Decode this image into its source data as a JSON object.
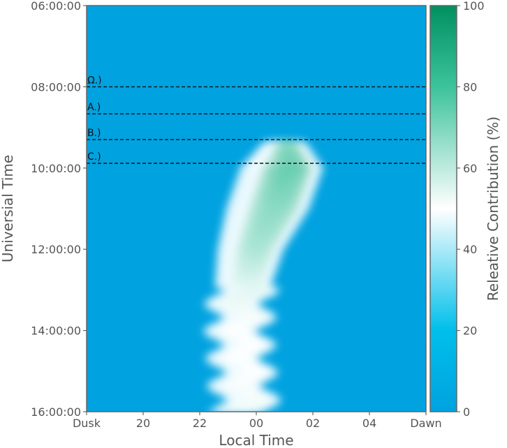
{
  "chart_data": {
    "type": "heatmap",
    "xlabel": "Local Time",
    "ylabel": "Universial Time",
    "colorbar_label": "Releative Contribution (%)",
    "x_ticks": [
      "Dusk",
      "20",
      "22",
      "00",
      "02",
      "04",
      "Dawn"
    ],
    "y_ticks": [
      "06:00:00",
      "08:00:00",
      "10:00:00",
      "12:00:00",
      "14:00:00",
      "16:00:00"
    ],
    "colorbar_ticks": [
      "0",
      "20",
      "40",
      "60",
      "80",
      "100"
    ],
    "clim": [
      0,
      100
    ],
    "colormap": [
      "#00A2E0",
      "#00BFEA",
      "#FFFFFF",
      "#3CC39B",
      "#009060"
    ],
    "background_color": "#00A2E0",
    "reference_lines": [
      {
        "label": "Ω.)",
        "ut": "08:00:00"
      },
      {
        "label": "A.)",
        "ut": "08:40:00"
      },
      {
        "label": "B.)",
        "ut": "09:18:00"
      },
      {
        "label": "C.)",
        "ut": "09:53:00"
      }
    ],
    "hotspot_description": "Peak contribution (~80%) near 01 LT around 10:00 UT; band drifts toward ~23–00 LT by 16:00 UT",
    "series": [
      {
        "ut_hours": 9.4,
        "lt_hours": 25.0,
        "width_hours": 1.2,
        "peak": 72
      },
      {
        "ut_hours": 10.0,
        "lt_hours": 24.9,
        "width_hours": 2.6,
        "peak": 80
      },
      {
        "ut_hours": 11.0,
        "lt_hours": 24.4,
        "width_hours": 2.6,
        "peak": 72
      },
      {
        "ut_hours": 12.0,
        "lt_hours": 23.8,
        "width_hours": 2.0,
        "peak": 66
      },
      {
        "ut_hours": 13.0,
        "lt_hours": 23.5,
        "width_hours": 1.6,
        "peak": 55
      },
      {
        "ut_hours": 14.0,
        "lt_hours": 23.4,
        "width_hours": 1.5,
        "peak": 50
      },
      {
        "ut_hours": 15.0,
        "lt_hours": 23.5,
        "width_hours": 1.5,
        "peak": 50
      },
      {
        "ut_hours": 16.0,
        "lt_hours": 23.6,
        "width_hours": 1.6,
        "peak": 52
      }
    ]
  }
}
